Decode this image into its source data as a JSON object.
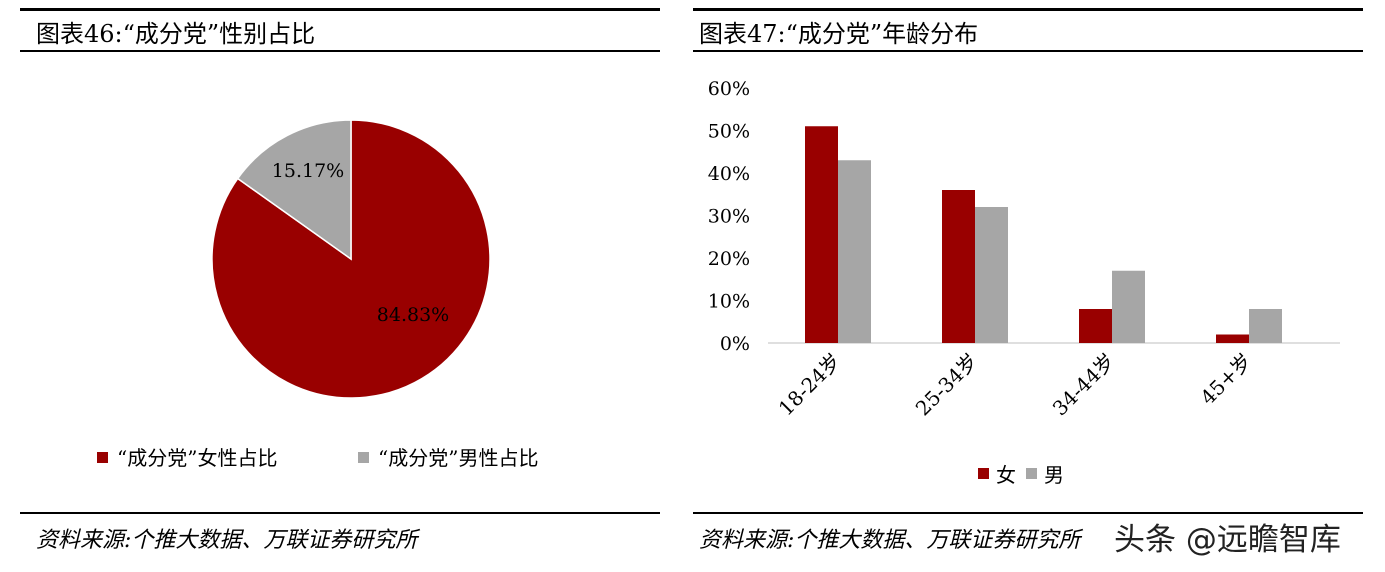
{
  "left_panel": {
    "title": "图表46:“成分党”性别占比",
    "source": "资料来源:个推大数据、万联证券研究所"
  },
  "right_panel": {
    "title": "图表47:“成分党”年龄分布",
    "source": "资料来源:个推大数据、万联证券研究所"
  },
  "watermark": "头条 @远瞻智库",
  "colors": {
    "female": "#990000",
    "male": "#a6a6a6"
  },
  "chart_data": [
    {
      "type": "pie",
      "slices": [
        {
          "label": "“成分党”女性占比",
          "value": 84.83,
          "display": "84.83%",
          "color": "#990000"
        },
        {
          "label": "“成分党”男性占比",
          "value": 15.17,
          "display": "15.17%",
          "color": "#a6a6a6"
        }
      ],
      "legend_position": "bottom"
    },
    {
      "type": "bar",
      "categories": [
        "18-24岁",
        "25-34岁",
        "34-44岁",
        "45+岁"
      ],
      "series": [
        {
          "name": "女",
          "values": [
            51,
            36,
            8,
            2
          ],
          "color": "#990000"
        },
        {
          "name": "男",
          "values": [
            43,
            32,
            17,
            8
          ],
          "color": "#a6a6a6"
        }
      ],
      "ylim": [
        0,
        60
      ],
      "yticks": [
        "0%",
        "10%",
        "20%",
        "30%",
        "40%",
        "50%",
        "60%"
      ],
      "grid": false,
      "legend_position": "bottom"
    }
  ]
}
